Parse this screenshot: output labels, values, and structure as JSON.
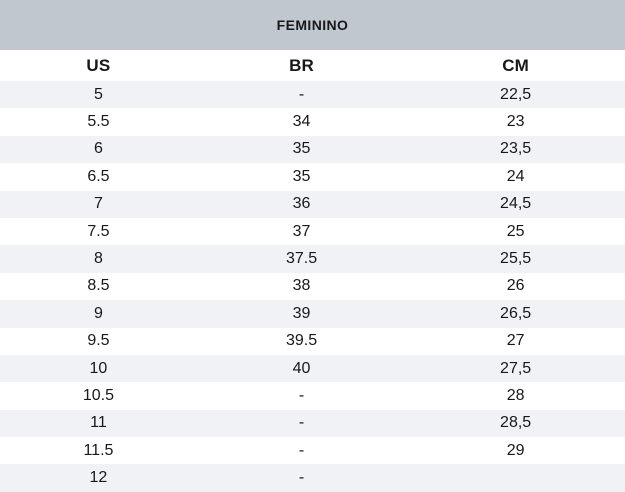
{
  "title": "FEMININO",
  "colors": {
    "title_bg": "#c1c7ce",
    "row_alt_bg": "#f0f2f6",
    "text": "#17181a"
  },
  "table": {
    "columns": [
      "US",
      "BR",
      "CM"
    ],
    "rows": [
      [
        "5",
        "-",
        "22,5"
      ],
      [
        "5.5",
        "34",
        "23"
      ],
      [
        "6",
        "35",
        "23,5"
      ],
      [
        "6.5",
        "35",
        "24"
      ],
      [
        "7",
        "36",
        "24,5"
      ],
      [
        "7.5",
        "37",
        "25"
      ],
      [
        "8",
        "37.5",
        "25,5"
      ],
      [
        "8.5",
        "38",
        "26"
      ],
      [
        "9",
        "39",
        "26,5"
      ],
      [
        "9.5",
        "39.5",
        "27"
      ],
      [
        "10",
        "40",
        "27,5"
      ],
      [
        "10.5",
        "-",
        "28"
      ],
      [
        "11",
        "-",
        "28,5"
      ],
      [
        "11.5",
        "-",
        "29"
      ],
      [
        "12",
        "-",
        ""
      ]
    ]
  }
}
